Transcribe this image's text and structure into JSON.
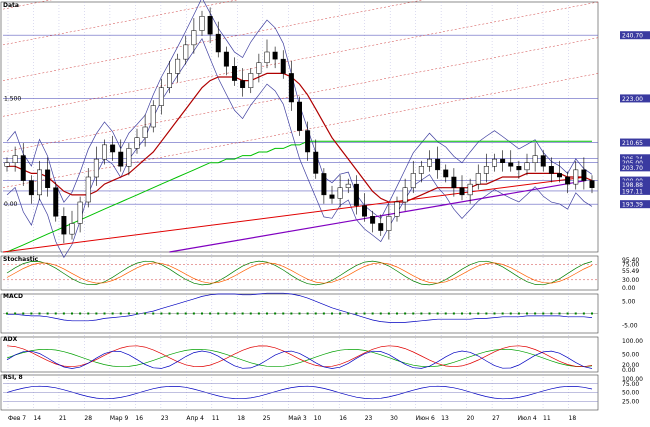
{
  "chart_data": {
    "type": "line",
    "price_pane": {
      "title": "Data",
      "y_tick_labels": [
        "240.70",
        "223.00",
        "210.65",
        "206.24",
        "205.00",
        "203.70",
        "200.00",
        "198.88",
        "197.11",
        "193.39"
      ],
      "boxed_labels": [
        {
          "text": "240.70",
          "color": "#3a3aa0"
        },
        {
          "text": "210.65",
          "color": "#3a3aa0"
        },
        {
          "text": "206.24",
          "color": "#3a3aa0"
        },
        {
          "text": "205.00",
          "color": "#3a3aa0"
        },
        {
          "text": "203.70",
          "color": "#3a3aa0"
        },
        {
          "text": "200.00",
          "color": "#3a3aa0"
        },
        {
          "text": "198.88",
          "color": "#3a3aa0"
        },
        {
          "text": "197.11",
          "color": "#3a3aa0"
        },
        {
          "text": "193.39",
          "color": "#3a3aa0"
        },
        {
          "text": "223.00",
          "color": "#3a3aa0"
        }
      ],
      "fib_labels": [
        "1.500",
        "0.00"
      ],
      "ylim": [
        180,
        250
      ],
      "close_series": [
        205,
        207,
        200,
        196,
        203,
        198,
        190,
        185,
        188,
        194,
        201,
        206,
        210,
        208,
        204,
        209,
        212,
        215,
        221,
        226,
        230,
        234,
        238,
        242,
        246,
        241,
        236,
        232,
        228,
        226,
        230,
        233,
        236,
        234,
        230,
        222,
        214,
        208,
        202,
        196,
        195,
        198,
        199,
        193,
        190,
        188,
        186,
        190,
        194,
        198,
        202,
        204,
        206,
        203,
        201,
        198,
        196,
        199,
        202,
        204,
        206,
        205,
        204,
        203,
        205,
        207,
        204,
        202,
        201,
        199,
        203,
        200,
        198
      ],
      "ema_red": [
        204,
        204,
        203,
        202,
        202,
        201,
        199,
        197,
        196,
        196,
        196,
        197,
        199,
        200,
        201,
        202,
        204,
        206,
        208,
        211,
        214,
        217,
        220,
        223,
        226,
        228,
        229,
        229,
        229,
        228,
        228,
        229,
        230,
        230,
        230,
        229,
        227,
        224,
        220,
        216,
        212,
        209,
        206,
        203,
        200,
        197,
        195,
        194,
        194,
        194,
        195,
        196,
        197,
        198,
        198,
        198,
        198,
        198,
        199,
        199,
        200,
        201,
        201,
        201,
        202,
        202,
        202,
        202,
        202,
        201,
        201,
        201,
        200
      ],
      "ma_green": [
        180,
        181,
        182,
        183,
        184,
        185,
        186,
        187,
        188,
        189,
        190,
        191,
        192,
        193,
        194,
        195,
        196,
        197,
        198,
        199,
        200,
        201,
        202,
        203,
        204,
        205,
        205,
        206,
        206,
        207,
        207,
        208,
        208,
        209,
        209,
        210,
        210,
        211,
        211,
        211,
        211,
        211,
        211,
        211,
        211,
        211,
        211,
        211,
        211,
        211,
        211,
        211,
        211,
        211,
        211,
        211,
        211,
        211,
        211,
        211,
        211,
        211,
        211,
        211,
        211,
        211,
        211,
        211,
        211,
        211,
        211,
        211,
        211
      ]
    },
    "stochastic_pane": {
      "title": "Stochastic",
      "tick_labels": [
        "95.40",
        "75.00",
        "55.49",
        "30.00",
        "0.00"
      ],
      "ylim": [
        0,
        100
      ]
    },
    "macd_pane": {
      "title": "MACD",
      "tick_labels": [
        "5.00",
        "-5.00"
      ],
      "ylim": [
        -8,
        8
      ]
    },
    "adx_pane": {
      "title": "ADX",
      "tick_labels": [
        "100.00",
        "50.00",
        "20.00",
        "0.00"
      ],
      "ylim": [
        0,
        100
      ]
    },
    "rsi_pane": {
      "title": "RSI, 8",
      "tick_labels": [
        "100.00",
        "75.00",
        "50.00",
        "25.00"
      ],
      "ylim": [
        0,
        100
      ]
    },
    "x_tick_labels": [
      "Фев 7",
      "14",
      "21",
      "28",
      "Мар 9",
      "16",
      "23",
      "Апр 4",
      "11",
      "18",
      "25",
      "Май 3",
      "10",
      "16",
      "23",
      "30",
      "Июн 6",
      "13",
      "20",
      "27",
      "Июл 4",
      "11",
      "18"
    ],
    "colors": {
      "background": "#ffffff",
      "grid": "#b8b8e0",
      "candles_up": "#ffffff",
      "candles_down": "#000000",
      "ema": "#b00000",
      "ma": "#00c000",
      "trend_red": "#e00000",
      "trend_purple": "#8000c0",
      "band": "#4040a0",
      "stoch_k": "#008000",
      "stoch_d": "#ff6000",
      "macd": "#0000c0",
      "macd_hist": "#008000",
      "adx": "#00a000",
      "rsi": "#0000c0"
    }
  }
}
